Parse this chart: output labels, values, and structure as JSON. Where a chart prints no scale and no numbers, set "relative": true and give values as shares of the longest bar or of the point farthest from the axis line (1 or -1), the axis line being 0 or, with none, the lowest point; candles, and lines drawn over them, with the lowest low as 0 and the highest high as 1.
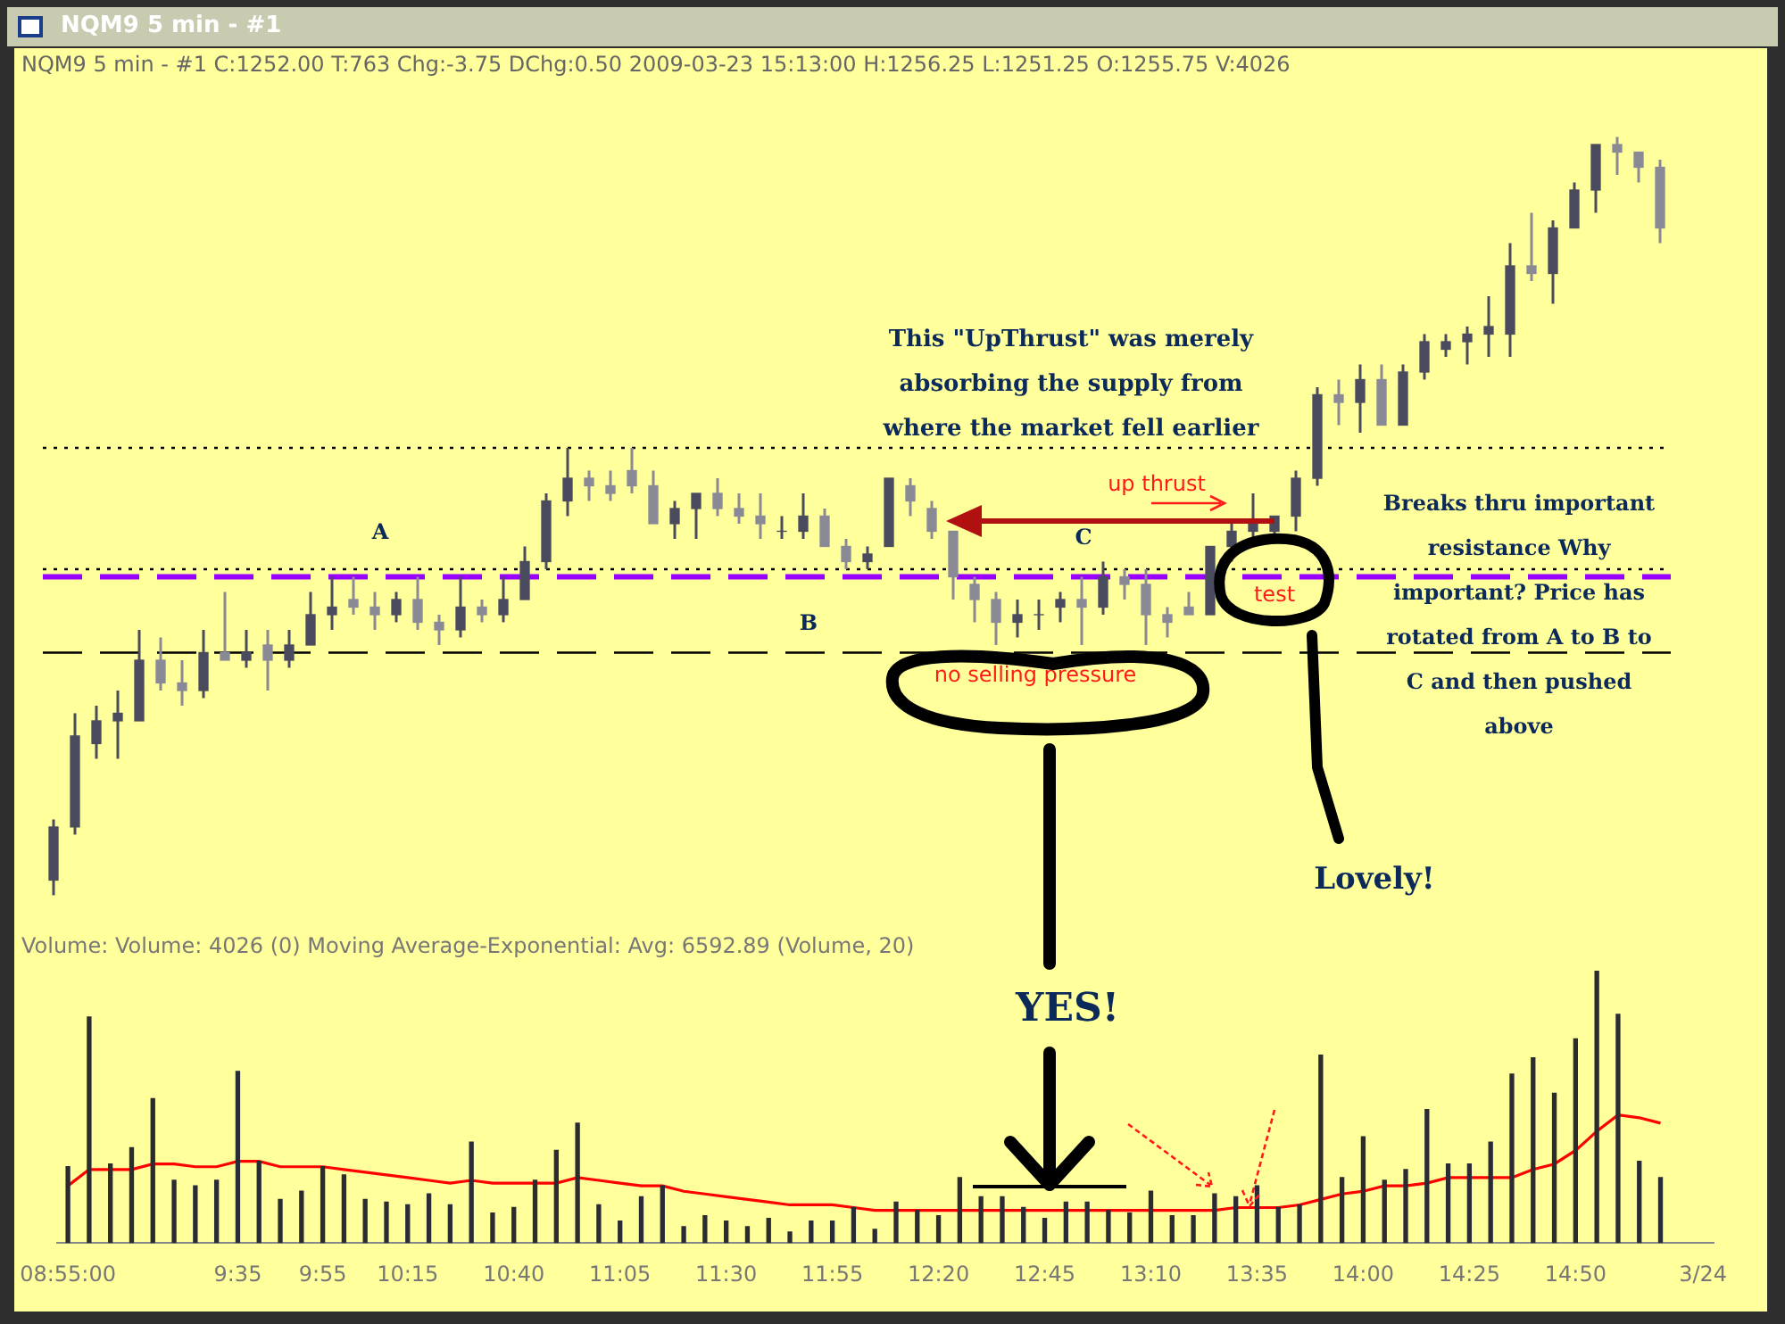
{
  "chart_data": [
    {
      "type": "candlestick",
      "title": "NQM9  5 min  - #1",
      "subtitle": "NQM9  5 min  - #1  C:1252.00  T:763  Chg:-3.75  DChg:0.50  2009-03-23  15:13:00  H:1256.25  L:1251.25  O:1255.75  V:4026",
      "relative": true,
      "tick_labels": false,
      "colors": [
        "#4b4b5e",
        "#4b4b5e",
        "#4b4b5e",
        "#4b4b5e",
        "#4b4b5e",
        "#8a8a96",
        "#8a8a96",
        "#4b4b5e",
        "#8a8a96",
        "#4b4b5e",
        "#8a8a96",
        "#4b4b5e",
        "#4b4b5e",
        "#4b4b5e",
        "#8a8a96",
        "#8a8a96",
        "#4b4b5e",
        "#8a8a96",
        "#8a8a96",
        "#4b4b5e",
        "#8a8a96",
        "#4b4b5e",
        "#4b4b5e",
        "#4b4b5e",
        "#4b4b5e",
        "#8a8a96",
        "#8a8a96",
        "#8a8a96",
        "#8a8a96",
        "#4b4b5e",
        "#4b4b5e",
        "#8a8a96",
        "#8a8a96",
        "#8a8a96",
        "#4b4b5e",
        "#4b4b5e",
        "#8a8a96",
        "#8a8a96",
        "#4b4b5e",
        "#4b4b5e",
        "#8a8a96",
        "#8a8a96",
        "#8a8a96",
        "#8a8a96",
        "#8a8a96",
        "#4b4b5e",
        "#4b4b5e",
        "#4b4b5e",
        "#8a8a96",
        "#4b4b5e",
        "#8a8a96",
        "#8a8a96",
        "#8a8a96",
        "#8a8a96",
        "#4b4b5e",
        "#4b4b5e",
        "#4b4b5e",
        "#4b4b5e",
        "#4b4b5e",
        "#4b4b5e",
        "#8a8a96",
        "#4b4b5e",
        "#8a8a96",
        "#4b4b5e",
        "#4b4b5e",
        "#4b4b5e",
        "#4b4b5e",
        "#4b4b5e",
        "#4b4b5e",
        "#8a8a96",
        "#4b4b5e",
        "#4b4b5e",
        "#4b4b5e",
        "#8a8a96",
        "#8a8a96",
        "#8a8a96"
      ],
      "categories": [
        null,
        null,
        null,
        null,
        null,
        null,
        null,
        null,
        null,
        null,
        null,
        null,
        null,
        null,
        null,
        null,
        null,
        null,
        null,
        null,
        null,
        null,
        null,
        null,
        null,
        null,
        null,
        null,
        null,
        null,
        null,
        null,
        null,
        null,
        null,
        null,
        null,
        null,
        null,
        null,
        null,
        null,
        null,
        null,
        null,
        null,
        null,
        null,
        null,
        null,
        null,
        null,
        null,
        null,
        null,
        null,
        null,
        null,
        null,
        null,
        null,
        null,
        null,
        null,
        null,
        null,
        null,
        null,
        null,
        null,
        null,
        null,
        null,
        null,
        null,
        null
      ],
      "ohlc": [
        [
          0.02,
          0.1,
          0.0,
          0.09
        ],
        [
          0.09,
          0.24,
          0.08,
          0.21
        ],
        [
          0.2,
          0.25,
          0.18,
          0.23
        ],
        [
          0.23,
          0.27,
          0.18,
          0.24
        ],
        [
          0.23,
          0.35,
          0.23,
          0.31
        ],
        [
          0.31,
          0.34,
          0.27,
          0.28
        ],
        [
          0.28,
          0.31,
          0.25,
          0.27
        ],
        [
          0.27,
          0.35,
          0.26,
          0.32
        ],
        [
          0.32,
          0.4,
          0.31,
          0.31
        ],
        [
          0.31,
          0.35,
          0.3,
          0.32
        ],
        [
          0.33,
          0.35,
          0.27,
          0.31
        ],
        [
          0.31,
          0.35,
          0.3,
          0.33
        ],
        [
          0.33,
          0.4,
          0.33,
          0.37
        ],
        [
          0.37,
          0.42,
          0.35,
          0.38
        ],
        [
          0.39,
          0.42,
          0.37,
          0.38
        ],
        [
          0.38,
          0.4,
          0.35,
          0.37
        ],
        [
          0.37,
          0.4,
          0.36,
          0.39
        ],
        [
          0.39,
          0.42,
          0.35,
          0.36
        ],
        [
          0.36,
          0.37,
          0.33,
          0.35
        ],
        [
          0.35,
          0.42,
          0.34,
          0.38
        ],
        [
          0.38,
          0.39,
          0.36,
          0.37
        ],
        [
          0.37,
          0.42,
          0.36,
          0.39
        ],
        [
          0.39,
          0.46,
          0.39,
          0.44
        ],
        [
          0.44,
          0.53,
          0.43,
          0.52
        ],
        [
          0.52,
          0.59,
          0.5,
          0.55
        ],
        [
          0.55,
          0.56,
          0.52,
          0.54
        ],
        [
          0.54,
          0.56,
          0.52,
          0.53
        ],
        [
          0.56,
          0.59,
          0.53,
          0.54
        ],
        [
          0.54,
          0.56,
          0.49,
          0.49
        ],
        [
          0.49,
          0.52,
          0.47,
          0.51
        ],
        [
          0.51,
          0.53,
          0.47,
          0.53
        ],
        [
          0.53,
          0.55,
          0.5,
          0.51
        ],
        [
          0.51,
          0.53,
          0.49,
          0.5
        ],
        [
          0.5,
          0.53,
          0.47,
          0.49
        ],
        [
          0.48,
          0.5,
          0.47,
          0.48
        ],
        [
          0.48,
          0.53,
          0.47,
          0.5
        ],
        [
          0.5,
          0.51,
          0.46,
          0.46
        ],
        [
          0.46,
          0.47,
          0.43,
          0.44
        ],
        [
          0.44,
          0.46,
          0.43,
          0.45
        ],
        [
          0.46,
          0.55,
          0.46,
          0.55
        ],
        [
          0.54,
          0.55,
          0.5,
          0.52
        ],
        [
          0.51,
          0.52,
          0.47,
          0.48
        ],
        [
          0.48,
          0.48,
          0.39,
          0.42
        ],
        [
          0.41,
          0.42,
          0.36,
          0.39
        ],
        [
          0.39,
          0.4,
          0.33,
          0.36
        ],
        [
          0.36,
          0.39,
          0.34,
          0.37
        ],
        [
          0.37,
          0.39,
          0.35,
          0.37
        ],
        [
          0.38,
          0.4,
          0.36,
          0.39
        ],
        [
          0.39,
          0.42,
          0.33,
          0.38
        ],
        [
          0.38,
          0.44,
          0.37,
          0.42
        ],
        [
          0.42,
          0.43,
          0.39,
          0.41
        ],
        [
          0.41,
          0.43,
          0.33,
          0.37
        ],
        [
          0.37,
          0.38,
          0.34,
          0.36
        ],
        [
          0.38,
          0.4,
          0.37,
          0.37
        ],
        [
          0.37,
          0.46,
          0.37,
          0.46
        ],
        [
          0.46,
          0.49,
          0.44,
          0.48
        ],
        [
          0.48,
          0.53,
          0.47,
          0.49
        ],
        [
          0.48,
          0.5,
          0.47,
          0.5
        ],
        [
          0.5,
          0.56,
          0.48,
          0.55
        ],
        [
          0.55,
          0.67,
          0.54,
          0.66
        ],
        [
          0.66,
          0.68,
          0.62,
          0.65
        ],
        [
          0.65,
          0.7,
          0.61,
          0.68
        ],
        [
          0.68,
          0.7,
          0.62,
          0.62
        ],
        [
          0.62,
          0.7,
          0.62,
          0.69
        ],
        [
          0.69,
          0.74,
          0.68,
          0.73
        ],
        [
          0.72,
          0.74,
          0.71,
          0.73
        ],
        [
          0.73,
          0.75,
          0.7,
          0.74
        ],
        [
          0.74,
          0.79,
          0.71,
          0.75
        ],
        [
          0.74,
          0.86,
          0.71,
          0.83
        ],
        [
          0.83,
          0.9,
          0.81,
          0.82
        ],
        [
          0.82,
          0.89,
          0.78,
          0.88
        ],
        [
          0.88,
          0.94,
          0.88,
          0.93
        ],
        [
          0.93,
          0.99,
          0.9,
          0.99
        ],
        [
          0.99,
          1.0,
          0.95,
          0.98
        ],
        [
          0.98,
          0.98,
          0.94,
          0.96
        ],
        [
          0.96,
          0.97,
          0.86,
          0.88
        ]
      ],
      "ref_lines": [
        {
          "axis": "y",
          "value": 0.32,
          "color": "#000000",
          "line_style": "dashed"
        },
        {
          "axis": "y",
          "value": 0.59,
          "color": "#000000",
          "line_style": "dotted"
        },
        {
          "axis": "y",
          "value": 0.43,
          "color": "#000000",
          "line_style": "dotted"
        },
        {
          "axis": "y",
          "value": 0.42,
          "color": "#9900ff",
          "line_style": "dashed"
        }
      ],
      "annotations": [
        "This \"UpThrust\" was merely absorbing the supply from where the market fell earlier",
        "A",
        "B",
        "C",
        "up thrust",
        "test",
        "no selling pressure",
        "Breaks thru important resistance Why important? Price has rotated from A to B to C and then pushed above",
        "Lovely!"
      ]
    },
    {
      "type": "bar",
      "title": "Volume:  Volume: 4026   (0)   Moving Average-Exponential:  Avg: 6592.89   (Volume, 20)",
      "relative": true,
      "categories": [
        "08:55:00",
        null,
        null,
        null,
        null,
        null,
        null,
        null,
        "9:35",
        null,
        null,
        null,
        "9:55",
        null,
        null,
        null,
        "10:15",
        null,
        null,
        null,
        null,
        "10:40",
        null,
        null,
        null,
        null,
        "11:05",
        null,
        null,
        null,
        null,
        "11:30",
        null,
        null,
        null,
        null,
        "11:55",
        null,
        null,
        null,
        null,
        "12:20",
        null,
        null,
        null,
        null,
        "12:45",
        null,
        null,
        null,
        null,
        "13:10",
        null,
        null,
        null,
        null,
        "13:35",
        null,
        null,
        null,
        null,
        "14:00",
        null,
        null,
        null,
        null,
        "14:25",
        null,
        null,
        null,
        null,
        "14:50",
        null,
        null,
        null,
        null,
        null,
        "3/24"
      ],
      "series": [
        {
          "color": "#2b2b33",
          "values": [
            0.28,
            0.83,
            0.29,
            0.35,
            0.53,
            0.23,
            0.21,
            0.23,
            0.63,
            0.3,
            0.16,
            0.19,
            0.28,
            0.25,
            0.16,
            0.15,
            0.14,
            0.18,
            0.14,
            0.37,
            0.11,
            0.13,
            0.23,
            0.34,
            0.44,
            0.14,
            0.08,
            0.17,
            0.21,
            0.06,
            0.1,
            0.08,
            0.06,
            0.09,
            0.04,
            0.08,
            0.08,
            0.13,
            0.05,
            0.15,
            0.12,
            0.1,
            0.24,
            0.17,
            0.17,
            0.13,
            0.09,
            0.15,
            0.15,
            0.12,
            0.11,
            0.19,
            0.1,
            0.1,
            0.18,
            0.17,
            0.21,
            0.13,
            0.14,
            0.69,
            0.24,
            0.39,
            0.23,
            0.27,
            0.49,
            0.29,
            0.29,
            0.37,
            0.62,
            0.68,
            0.55,
            0.75,
            1.0,
            0.84,
            0.3,
            0.24,
            null,
            null
          ]
        },
        {
          "type": "line",
          "color": "#ff0000",
          "values": [
            0.21,
            0.27,
            0.27,
            0.27,
            0.29,
            0.29,
            0.28,
            0.28,
            0.3,
            0.3,
            0.28,
            0.28,
            0.28,
            0.27,
            0.26,
            0.25,
            0.24,
            0.23,
            0.22,
            0.23,
            0.22,
            0.22,
            0.22,
            0.22,
            0.24,
            0.23,
            0.22,
            0.21,
            0.21,
            0.19,
            0.18,
            0.17,
            0.16,
            0.15,
            0.14,
            0.14,
            0.14,
            0.13,
            0.12,
            0.12,
            0.12,
            0.12,
            0.12,
            0.12,
            0.12,
            0.12,
            0.12,
            0.12,
            0.12,
            0.12,
            0.12,
            0.12,
            0.12,
            0.12,
            0.12,
            0.13,
            0.13,
            0.13,
            0.14,
            0.16,
            0.18,
            0.19,
            0.21,
            0.21,
            0.22,
            0.24,
            0.24,
            0.24,
            0.24,
            0.27,
            0.29,
            0.34,
            0.41,
            0.47,
            0.46,
            0.44,
            null,
            null
          ]
        }
      ],
      "annotations": [
        "YES!"
      ]
    }
  ]
}
